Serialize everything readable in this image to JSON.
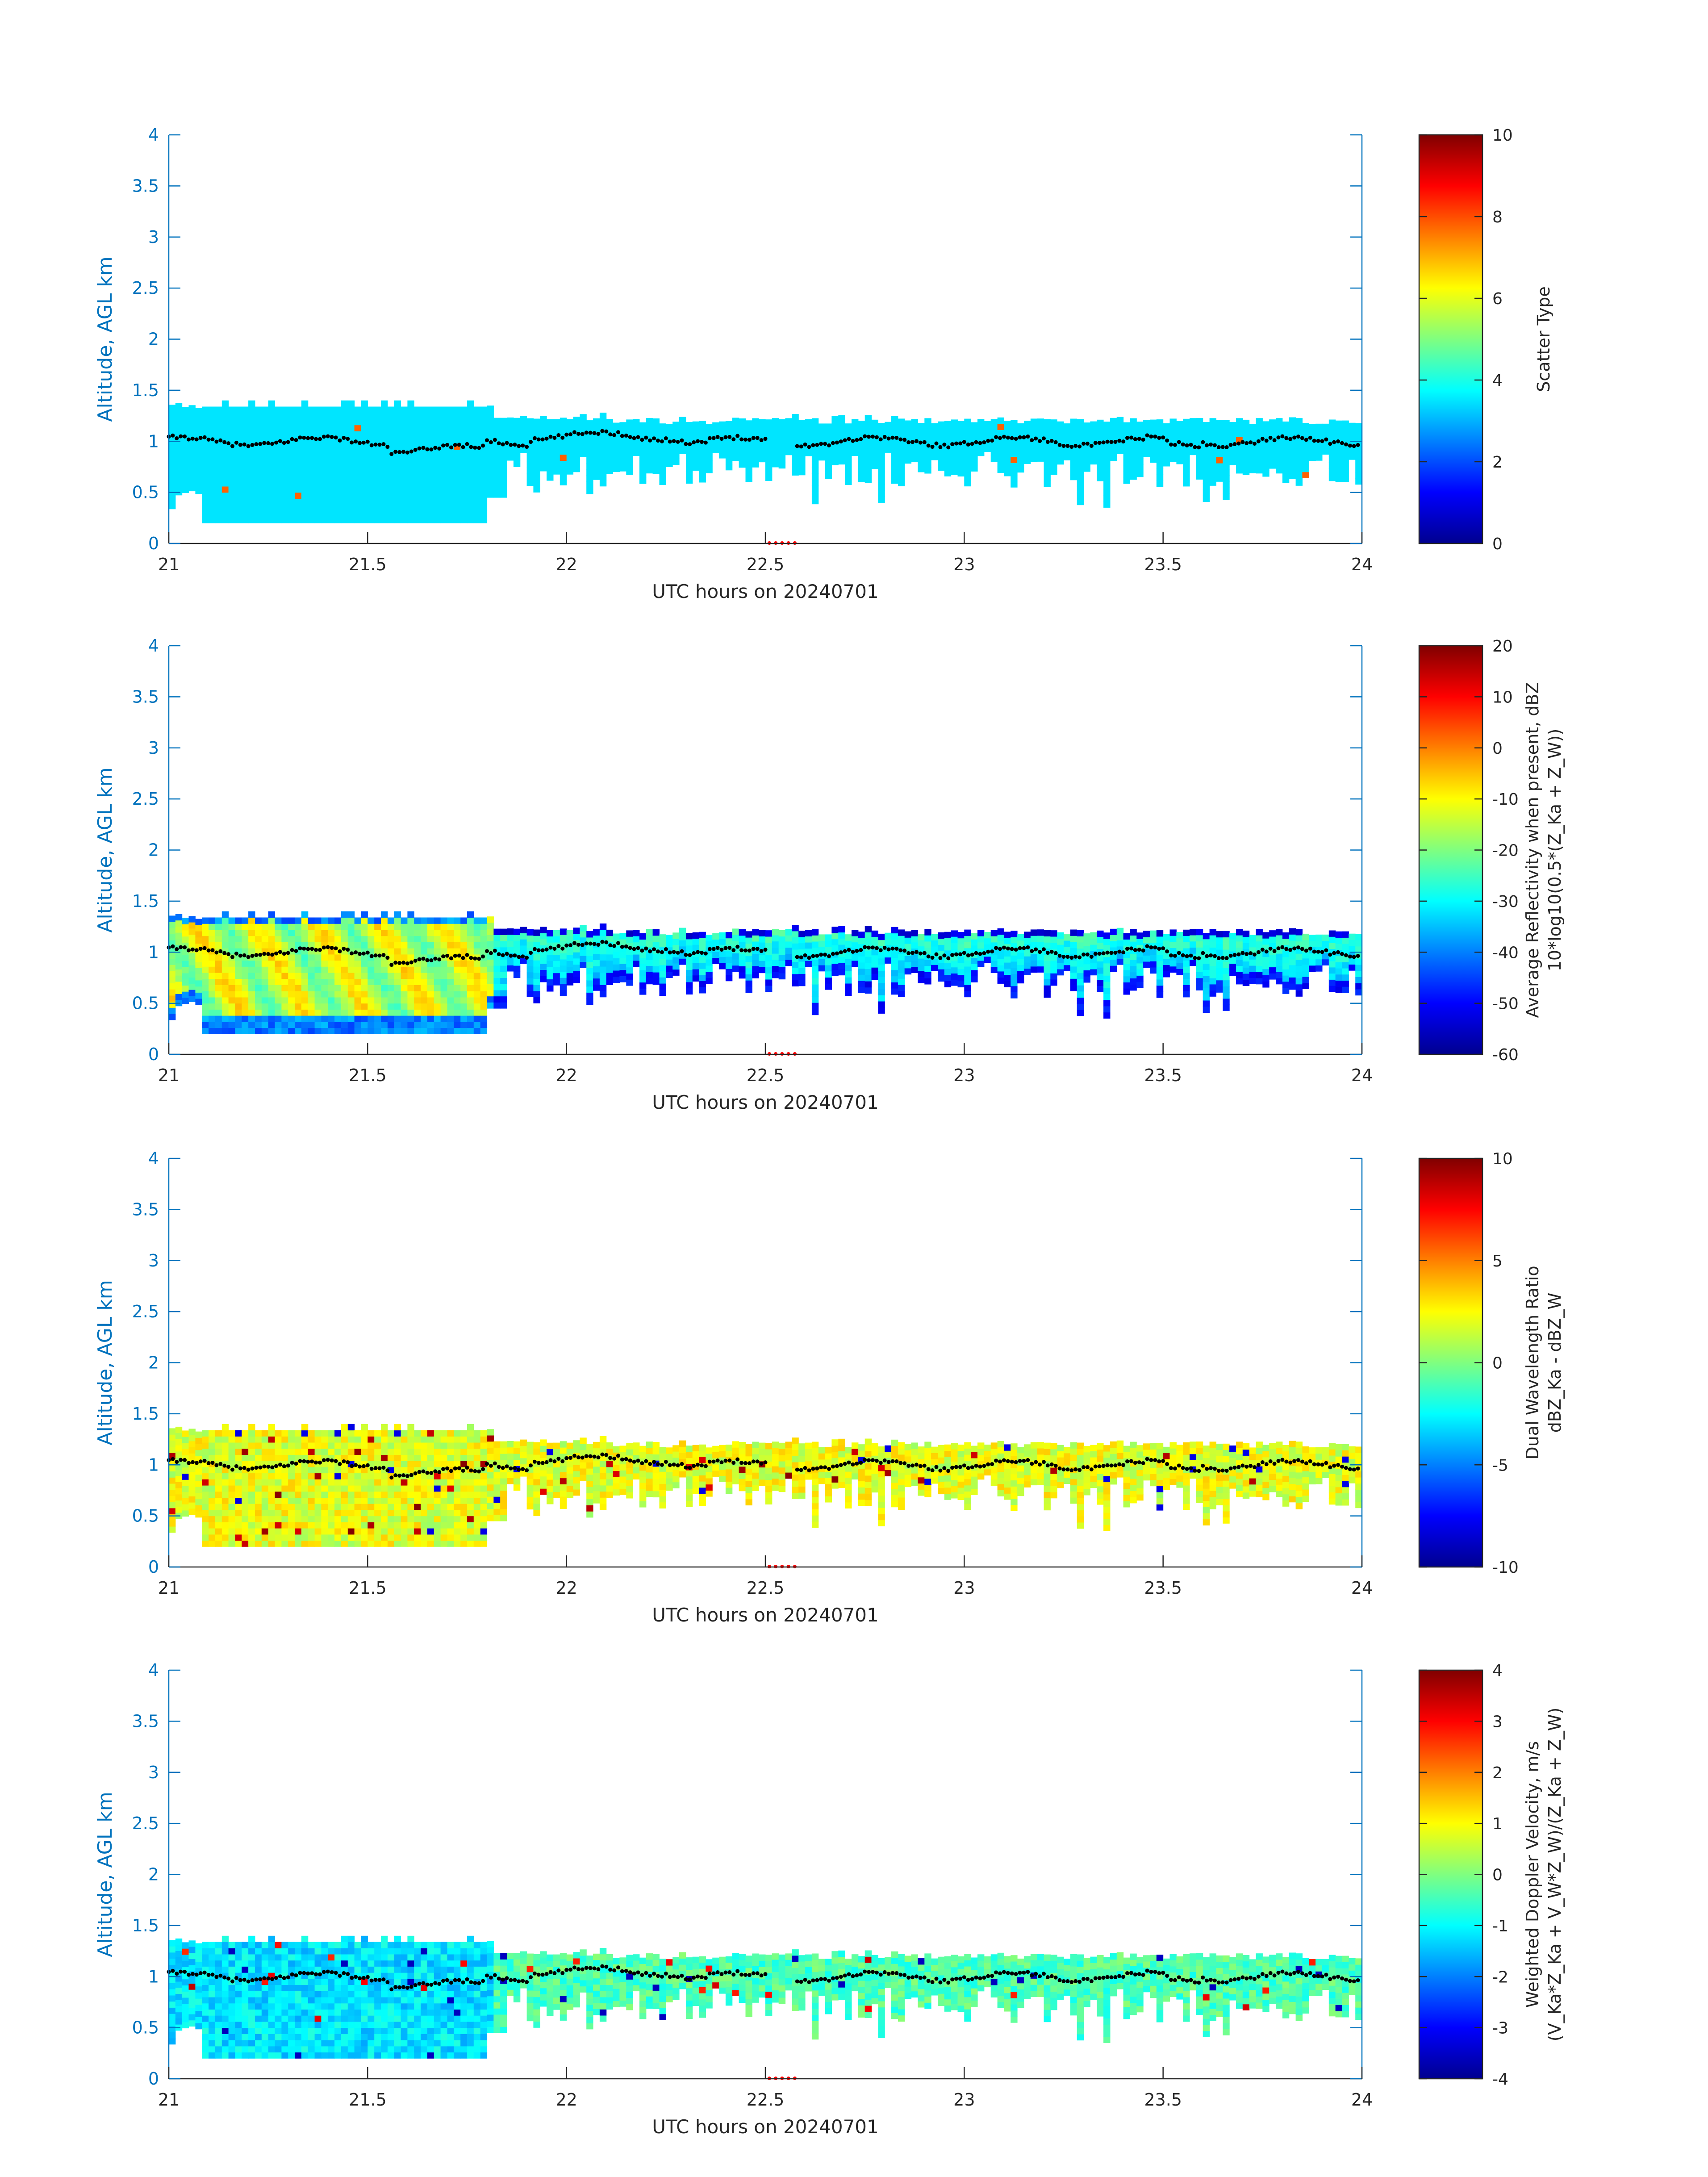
{
  "chart_data": [
    {
      "type": "heatmap",
      "xlabel": "UTC hours on 20240701",
      "ylabel": "Altitude, AGL km",
      "xlim": [
        21,
        24
      ],
      "ylim": [
        0,
        4
      ],
      "xticks": [
        "21",
        "21.5",
        "22",
        "22.5",
        "23",
        "23.5",
        "24"
      ],
      "yticks": [
        "0",
        "0.5",
        "1",
        "1.5",
        "2",
        "2.5",
        "3",
        "3.5",
        "4"
      ],
      "colorbar": {
        "label": [
          "Scatter Type"
        ],
        "ticks": [
          "0",
          "2",
          "4",
          "6",
          "8",
          "10"
        ],
        "range": [
          0,
          10
        ],
        "colormap": "jet"
      },
      "field": "scatter",
      "overlay": "black dotted cloud-base height line; red dots near 22.5 on x-axis"
    },
    {
      "type": "heatmap",
      "xlabel": "UTC hours on 20240701",
      "ylabel": "Altitude, AGL km",
      "xlim": [
        21,
        24
      ],
      "ylim": [
        0,
        4
      ],
      "xticks": [
        "21",
        "21.5",
        "22",
        "22.5",
        "23",
        "23.5",
        "24"
      ],
      "yticks": [
        "0",
        "0.5",
        "1",
        "1.5",
        "2",
        "2.5",
        "3",
        "3.5",
        "4"
      ],
      "colorbar": {
        "label": [
          "Average Reflectivity when present, dBZ",
          "10*log10(0.5*(Z_Ka + Z_W))"
        ],
        "ticks": [
          "-60",
          "-50",
          "-40",
          "-30",
          "-20",
          "-10",
          "0",
          "10",
          "20"
        ],
        "range": [
          -60,
          20
        ],
        "colormap": "jet"
      },
      "field": "reflectivity"
    },
    {
      "type": "heatmap",
      "xlabel": "UTC hours on 20240701",
      "ylabel": "Altitude, AGL km",
      "xlim": [
        21,
        24
      ],
      "ylim": [
        0,
        4
      ],
      "xticks": [
        "21",
        "21.5",
        "22",
        "22.5",
        "23",
        "23.5",
        "24"
      ],
      "yticks": [
        "0",
        "0.5",
        "1",
        "1.5",
        "2",
        "2.5",
        "3",
        "3.5",
        "4"
      ],
      "colorbar": {
        "label": [
          "Dual Wavelength Ratio",
          "dBZ_Ka - dBZ_W"
        ],
        "ticks": [
          "-10",
          "-5",
          "0",
          "5",
          "10"
        ],
        "range": [
          -10,
          10
        ],
        "colormap": "jet"
      },
      "field": "dwr"
    },
    {
      "type": "heatmap",
      "xlabel": "UTC hours on 20240701",
      "ylabel": "Altitude, AGL km",
      "xlim": [
        21,
        24
      ],
      "ylim": [
        0,
        4
      ],
      "xticks": [
        "21",
        "21.5",
        "22",
        "22.5",
        "23",
        "23.5",
        "24"
      ],
      "yticks": [
        "0",
        "0.5",
        "1",
        "1.5",
        "2",
        "2.5",
        "3",
        "3.5",
        "4"
      ],
      "colorbar": {
        "label": [
          "Weighted Doppler Velocity, m/s",
          "(V_Ka*Z_Ka + V_W*Z_W)/(Z_Ka + Z_W)"
        ],
        "ticks": [
          "-4",
          "-3",
          "-2",
          "-1",
          "0",
          "1",
          "2",
          "3",
          "4"
        ],
        "range": [
          -4,
          4
        ],
        "colormap": "jet"
      },
      "field": "velocity"
    }
  ]
}
